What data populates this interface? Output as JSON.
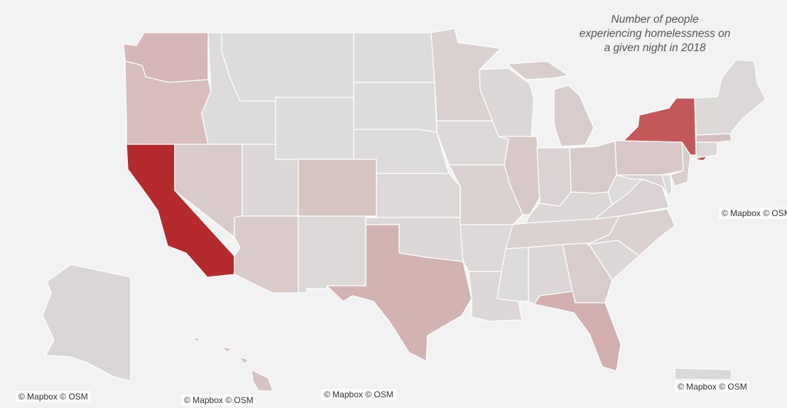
{
  "title": {
    "line1": "Number of people",
    "line2": "experiencing homelessness on",
    "line3": "a given night in 2018"
  },
  "attributions": {
    "main": "© Mapbox © OSM",
    "alaska": "© Mapbox © OSM",
    "hawaii": "© Mapbox © OSM",
    "inset3": "© Mapbox © OSM",
    "puerto_rico": "© Mapbox © OSM",
    "right_edge": "© Mapbox © OSM"
  },
  "color_scale": {
    "low": "#dedede",
    "high": "#b52a2a"
  },
  "states": [
    {
      "id": "WA",
      "fill": "#d6b6b6"
    },
    {
      "id": "OR",
      "fill": "#d9bebe"
    },
    {
      "id": "CA",
      "fill": "#b52a2a"
    },
    {
      "id": "ID",
      "fill": "#dcdada"
    },
    {
      "id": "NV",
      "fill": "#dbcaca"
    },
    {
      "id": "MT",
      "fill": "#dcdcdc"
    },
    {
      "id": "WY",
      "fill": "#dcdcdc"
    },
    {
      "id": "UT",
      "fill": "#dcd6d6"
    },
    {
      "id": "AZ",
      "fill": "#dacaca"
    },
    {
      "id": "CO",
      "fill": "#d9c4c4"
    },
    {
      "id": "NM",
      "fill": "#dcd8d8"
    },
    {
      "id": "ND",
      "fill": "#dcdcdc"
    },
    {
      "id": "SD",
      "fill": "#dcdcdc"
    },
    {
      "id": "NE",
      "fill": "#dcdada"
    },
    {
      "id": "KS",
      "fill": "#dcd8d8"
    },
    {
      "id": "OK",
      "fill": "#dcd6d6"
    },
    {
      "id": "TX",
      "fill": "#d3b2b2"
    },
    {
      "id": "MN",
      "fill": "#dad0d0"
    },
    {
      "id": "IA",
      "fill": "#dcd8d8"
    },
    {
      "id": "MO",
      "fill": "#dad0d0"
    },
    {
      "id": "AR",
      "fill": "#dcd8d8"
    },
    {
      "id": "LA",
      "fill": "#dcd6d6"
    },
    {
      "id": "WI",
      "fill": "#dcd6d6"
    },
    {
      "id": "IL",
      "fill": "#d9c8c8"
    },
    {
      "id": "MI",
      "fill": "#d9cccc"
    },
    {
      "id": "IN",
      "fill": "#dad2d2"
    },
    {
      "id": "OH",
      "fill": "#d9caca"
    },
    {
      "id": "KY",
      "fill": "#dcd6d6"
    },
    {
      "id": "TN",
      "fill": "#dad0d0"
    },
    {
      "id": "MS",
      "fill": "#dcdada"
    },
    {
      "id": "AL",
      "fill": "#dcd6d6"
    },
    {
      "id": "GA",
      "fill": "#d9cccc"
    },
    {
      "id": "FL",
      "fill": "#d3aeae"
    },
    {
      "id": "SC",
      "fill": "#dcd6d6"
    },
    {
      "id": "NC",
      "fill": "#dad0d0"
    },
    {
      "id": "VA",
      "fill": "#dad2d2"
    },
    {
      "id": "WV",
      "fill": "#dcdada"
    },
    {
      "id": "PA",
      "fill": "#d9c6c6"
    },
    {
      "id": "NY",
      "fill": "#c45858"
    },
    {
      "id": "NJ",
      "fill": "#d9cccc"
    },
    {
      "id": "MD",
      "fill": "#dad2d2"
    },
    {
      "id": "DE",
      "fill": "#dcdada"
    },
    {
      "id": "NEW_ENGLAND",
      "fill": "#dcd8d8"
    },
    {
      "id": "MA",
      "fill": "#d6bebe"
    },
    {
      "id": "AK",
      "fill": "#dad6d6"
    },
    {
      "id": "HI",
      "fill": "#d6c2c2"
    },
    {
      "id": "PR",
      "fill": "#dad8d8"
    }
  ]
}
